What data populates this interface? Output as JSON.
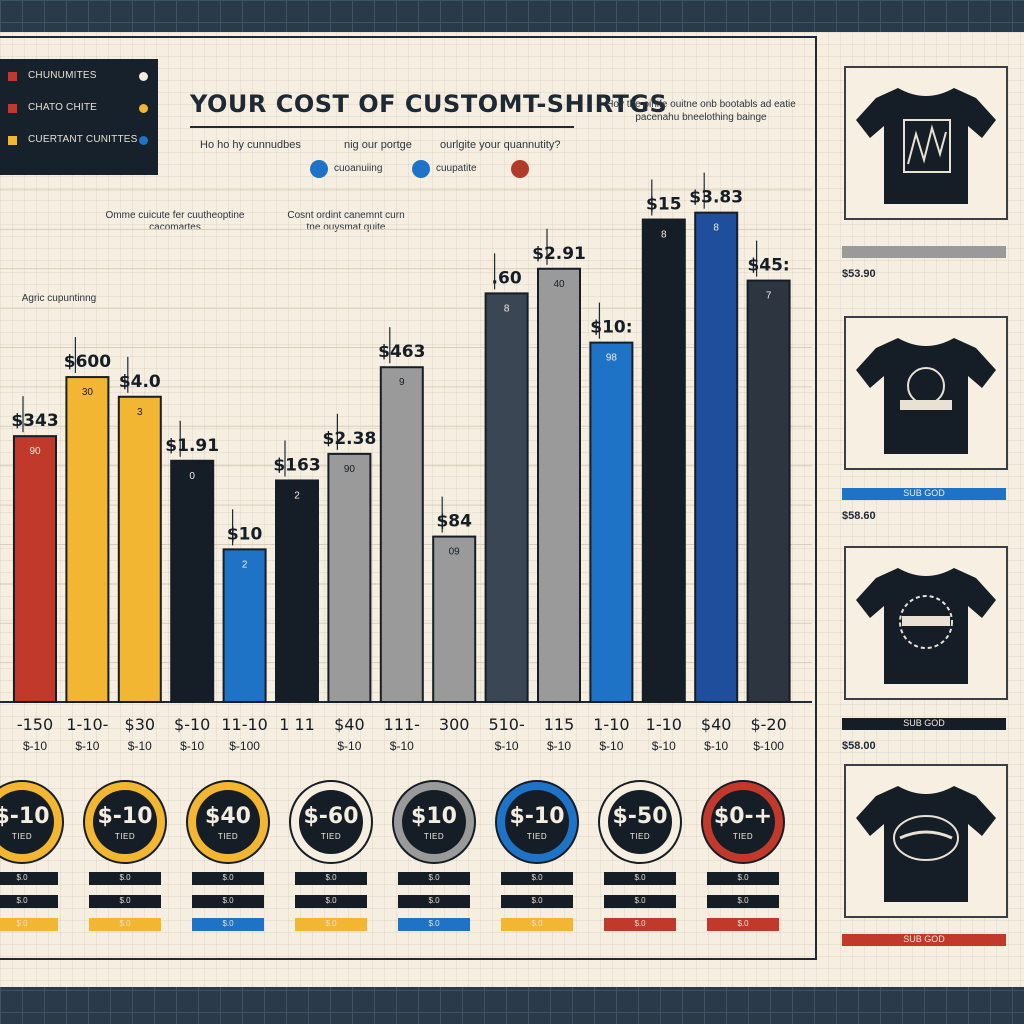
{
  "title": "YOUR COST OF CUSTOMT-SHIRTGS",
  "subtitle": {
    "left": "Ho ho hy cunnudbes",
    "mid": "nig our portge",
    "right": "ourlgite your quannutity?"
  },
  "top_note": "Hov the oinife ouitne onb bootabls ad eatie pacenahu bneelothing bainge",
  "legend": {
    "items": [
      {
        "label": "CHUNUMITES",
        "color": "#c0392b",
        "dot": "#f4ecde"
      },
      {
        "label": "CHATO CHITE",
        "color": "#c0392b",
        "dot": "#f2b632"
      },
      {
        "label": "CUERTANT CUNITTES",
        "color": "#f2b632",
        "dot": "#1f73c7"
      }
    ]
  },
  "chips": [
    {
      "label": "cuoanuiing",
      "color": "#1f73c7"
    },
    {
      "label": "cuupatite",
      "color": "#1f73c7"
    },
    {
      "label": "",
      "color": "#b23a2a"
    }
  ],
  "annotations": {
    "a1": "Omme cuicute fer cuutheoptine cacomartes",
    "a2": "Cosnt ordint canemnt curn tne ouysmat quite",
    "a3": "Agric cupuntinng"
  },
  "chart_data": {
    "type": "bar",
    "categories": [
      "-150",
      "1-10-",
      "$30",
      "$-10",
      "11-10",
      "1 11",
      "$40",
      "111-",
      "300",
      "510-",
      "115",
      "1-10",
      "1-10",
      "$40",
      "$-20"
    ],
    "category_sublabels": [
      "$-10",
      "$-10",
      "$-10",
      "$-10",
      "$-100",
      "",
      "$-10",
      "$-10",
      "",
      "$-10",
      "$-10",
      "$-10",
      "$-10",
      "$-10",
      "$-100"
    ],
    "bars": [
      {
        "price_label": "$343",
        "index_label": "90",
        "value": 270,
        "color": "#c0392b"
      },
      {
        "price_label": "$600",
        "index_label": "30",
        "value": 330,
        "color": "#f2b632"
      },
      {
        "price_label": "$4.0",
        "index_label": "3",
        "value": 310,
        "color": "#f2b632"
      },
      {
        "price_label": "$1.91",
        "index_label": "0",
        "value": 245,
        "color": "#151d26"
      },
      {
        "price_label": "$10",
        "index_label": "2",
        "value": 155,
        "color": "#1f73c7"
      },
      {
        "price_label": "$163",
        "index_label": "2",
        "value": 225,
        "color": "#151d26"
      },
      {
        "price_label": "$2.38",
        "index_label": "90",
        "value": 252,
        "color": "#9a9a9a"
      },
      {
        "price_label": "$463",
        "index_label": "9",
        "value": 340,
        "color": "#9a9a9a"
      },
      {
        "price_label": "$84",
        "index_label": "09",
        "value": 168,
        "color": "#9a9a9a"
      },
      {
        "price_label": ".60",
        "index_label": "8",
        "value": 415,
        "color": "#3a4654"
      },
      {
        "price_label": "$2.91",
        "index_label": "40",
        "value": 440,
        "color": "#9a9a9a"
      },
      {
        "price_label": "$10:",
        "index_label": "98",
        "value": 365,
        "color": "#1f73c7"
      },
      {
        "price_label": "$15",
        "index_label": "8",
        "value": 490,
        "color": "#151d26"
      },
      {
        "price_label": "$3.83",
        "index_label": "8",
        "value": 497,
        "color": "#1f4f9c"
      },
      {
        "price_label": "$45:",
        "index_label": "7",
        "value": 428,
        "color": "#2c3540"
      }
    ],
    "ylim": [
      0,
      520
    ],
    "grid": true
  },
  "badges": [
    {
      "price": "$-10",
      "sub": "TIED",
      "ring": "#f2b632"
    },
    {
      "price": "$-10",
      "sub": "TIED",
      "ring": "#f2b632"
    },
    {
      "price": "$40",
      "sub": "TIED",
      "ring": "#f2b632"
    },
    {
      "price": "$-60",
      "sub": "TIED",
      "ring": "#f6eee0"
    },
    {
      "price": "$10",
      "sub": "TIED",
      "ring": "#9a9a9a"
    },
    {
      "price": "$-10",
      "sub": "TIED",
      "ring": "#1f73c7"
    },
    {
      "price": "$-50",
      "sub": "TIED",
      "ring": "#f6eee0"
    },
    {
      "price": "$0-+",
      "sub": "TIED",
      "ring": "#c0392b"
    }
  ],
  "strips": [
    {
      "rows": [
        "$.0",
        "$.0",
        "$.0"
      ],
      "last_color": "#f2b632"
    },
    {
      "rows": [
        "$.0",
        "$.0",
        "$.0"
      ],
      "last_color": "#f2b632"
    },
    {
      "rows": [
        "$.0",
        "$.0",
        "$.0"
      ],
      "last_color": "#1f73c7"
    },
    {
      "rows": [
        "$.0",
        "$.0",
        "$.0"
      ],
      "last_color": "#f2b632"
    },
    {
      "rows": [
        "$.0",
        "$.0",
        "$.0"
      ],
      "last_color": "#1f73c7"
    },
    {
      "rows": [
        "$.0",
        "$.0",
        "$.0"
      ],
      "last_color": "#f2b632"
    },
    {
      "rows": [
        "$.0",
        "$.0",
        "$.0"
      ],
      "last_color": "#c0392b"
    },
    {
      "rows": [
        "$.0",
        "$.0",
        "$.0"
      ],
      "last_color": "#c0392b"
    }
  ],
  "cards": [
    {
      "bar": "",
      "bar_color": "#9a9a9a",
      "price": "$53.90"
    },
    {
      "bar": "SUB GOD",
      "bar_color": "#1f73c7",
      "price": "$58.60"
    },
    {
      "bar": "SUB GOD",
      "bar_color": "#151d26",
      "price": "$58.00"
    },
    {
      "bar": "SUB GOD",
      "bar_color": "#c0392b",
      "price": ""
    }
  ]
}
